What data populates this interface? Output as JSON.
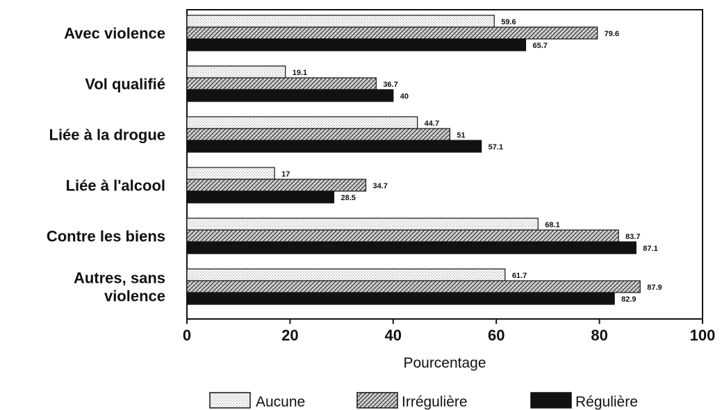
{
  "chart_data": {
    "type": "bar",
    "orientation": "horizontal",
    "title": "",
    "xlabel": "Pourcentage",
    "ylabel": "",
    "xlim": [
      0,
      100
    ],
    "xticks": [
      "0",
      "20",
      "40",
      "60",
      "80",
      "100"
    ],
    "grid": false,
    "legend_position": "bottom",
    "categories": [
      [
        "Avec violence"
      ],
      [
        "Vol qualifié"
      ],
      [
        "Liée à la drogue"
      ],
      [
        "Liée à l'alcool"
      ],
      [
        "Contre les biens"
      ],
      [
        "Autres, sans",
        "violence"
      ]
    ],
    "series": [
      {
        "name": "Aucune",
        "values": [
          59.6,
          19.1,
          44.7,
          17,
          68.1,
          61.7
        ],
        "labels": [
          "59.6",
          "19.1",
          "44.7",
          "17",
          "68.1",
          "61.7"
        ],
        "pattern": "dotted"
      },
      {
        "name": "Irrégulière",
        "values": [
          79.6,
          36.7,
          51,
          34.7,
          83.7,
          87.9
        ],
        "labels": [
          "79.6",
          "36.7",
          "51",
          "34.7",
          "83.7",
          "87.9"
        ],
        "pattern": "hatched"
      },
      {
        "name": "Régulière",
        "values": [
          65.7,
          40,
          57.1,
          28.5,
          87.1,
          82.9
        ],
        "labels": [
          "65.7",
          "40",
          "57.1",
          "28.5",
          "87.1",
          "82.9"
        ],
        "pattern": "solid"
      }
    ]
  }
}
